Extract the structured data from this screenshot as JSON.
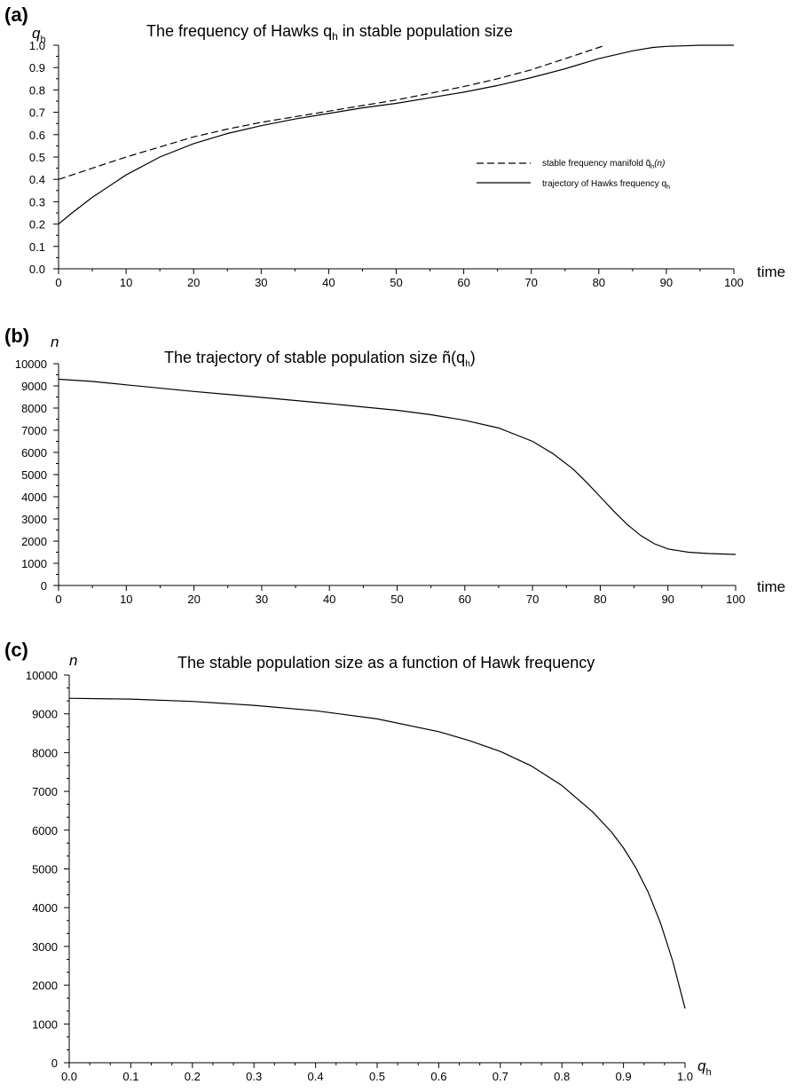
{
  "chart_data": [
    {
      "type": "line",
      "panel_label": "(a)",
      "title": "The frequency of Hawks q",
      "title_sub": "h",
      "title_rest": " in stable population size",
      "ylabel": "q",
      "ylabel_sub": "h",
      "xlabel": "time",
      "xlim": [
        0,
        100
      ],
      "ylim": [
        0,
        1
      ],
      "xticks": [
        "0",
        "10",
        "20",
        "30",
        "40",
        "50",
        "60",
        "70",
        "80",
        "90",
        "100"
      ],
      "yticks": [
        "0.0",
        "0.1",
        "0.2",
        "0.3",
        "0.4",
        "0.5",
        "0.6",
        "0.7",
        "0.8",
        "0.9",
        "1.0"
      ],
      "legend_position": "right",
      "series": [
        {
          "name": "stable frequency manifold q̃",
          "name_sub": "h",
          "name_rest": "(n)",
          "style": "dashed",
          "x": [
            0,
            5,
            10,
            15,
            20,
            25,
            30,
            35,
            40,
            45,
            50,
            55,
            60,
            65,
            70,
            75,
            80,
            81
          ],
          "y": [
            0.4,
            0.45,
            0.5,
            0.545,
            0.59,
            0.625,
            0.655,
            0.68,
            0.705,
            0.73,
            0.755,
            0.785,
            0.815,
            0.85,
            0.89,
            0.94,
            0.99,
            1.0
          ]
        },
        {
          "name": "trajectory of Hawks frequency q",
          "name_sub": "h",
          "name_rest": "",
          "style": "solid",
          "x": [
            0,
            2,
            5,
            10,
            15,
            20,
            25,
            30,
            35,
            40,
            45,
            50,
            55,
            60,
            65,
            70,
            75,
            80,
            85,
            88,
            90,
            95,
            100
          ],
          "y": [
            0.2,
            0.25,
            0.32,
            0.42,
            0.5,
            0.56,
            0.605,
            0.64,
            0.67,
            0.695,
            0.72,
            0.74,
            0.765,
            0.79,
            0.82,
            0.855,
            0.895,
            0.94,
            0.975,
            0.99,
            0.995,
            1.0,
            1.0
          ]
        }
      ]
    },
    {
      "type": "line",
      "panel_label": "(b)",
      "title": "The trajectory of stable population size ñ(q",
      "title_sub": "h",
      "title_rest": ")",
      "ylabel": "n",
      "xlabel": "time",
      "xlim": [
        0,
        100
      ],
      "ylim": [
        0,
        10000
      ],
      "xticks": [
        "0",
        "10",
        "20",
        "30",
        "40",
        "50",
        "60",
        "70",
        "80",
        "90",
        "100"
      ],
      "yticks": [
        "0",
        "1000",
        "2000",
        "3000",
        "4000",
        "5000",
        "6000",
        "7000",
        "8000",
        "9000",
        "10000"
      ],
      "series": [
        {
          "name": "",
          "style": "solid",
          "x": [
            0,
            5,
            10,
            20,
            30,
            40,
            50,
            55,
            60,
            65,
            70,
            73,
            76,
            78,
            80,
            82,
            84,
            86,
            88,
            90,
            93,
            96,
            100
          ],
          "y": [
            9300,
            9200,
            9050,
            8750,
            8480,
            8200,
            7900,
            7700,
            7450,
            7100,
            6500,
            5950,
            5250,
            4650,
            4000,
            3350,
            2750,
            2250,
            1880,
            1650,
            1500,
            1440,
            1400
          ]
        }
      ]
    },
    {
      "type": "line",
      "panel_label": "(c)",
      "title": "The stable population size as a function of Hawk frequency",
      "ylabel": "n",
      "xlabel": "q",
      "xlabel_sub": "h",
      "xlim": [
        0,
        1
      ],
      "ylim": [
        0,
        10000
      ],
      "xticks": [
        "0.0",
        "0.1",
        "0.2",
        "0.3",
        "0.4",
        "0.5",
        "0.6",
        "0.7",
        "0.8",
        "0.9",
        "1.0"
      ],
      "yticks": [
        "0",
        "1000",
        "2000",
        "3000",
        "4000",
        "5000",
        "6000",
        "7000",
        "8000",
        "9000",
        "10000"
      ],
      "series": [
        {
          "name": "",
          "style": "solid",
          "x": [
            0,
            0.1,
            0.2,
            0.3,
            0.4,
            0.5,
            0.6,
            0.65,
            0.7,
            0.75,
            0.8,
            0.85,
            0.88,
            0.9,
            0.92,
            0.94,
            0.96,
            0.98,
            1.0
          ],
          "y": [
            9400,
            9380,
            9320,
            9220,
            9080,
            8870,
            8540,
            8310,
            8030,
            7660,
            7150,
            6470,
            5960,
            5540,
            5030,
            4400,
            3610,
            2620,
            1400
          ]
        }
      ]
    }
  ]
}
